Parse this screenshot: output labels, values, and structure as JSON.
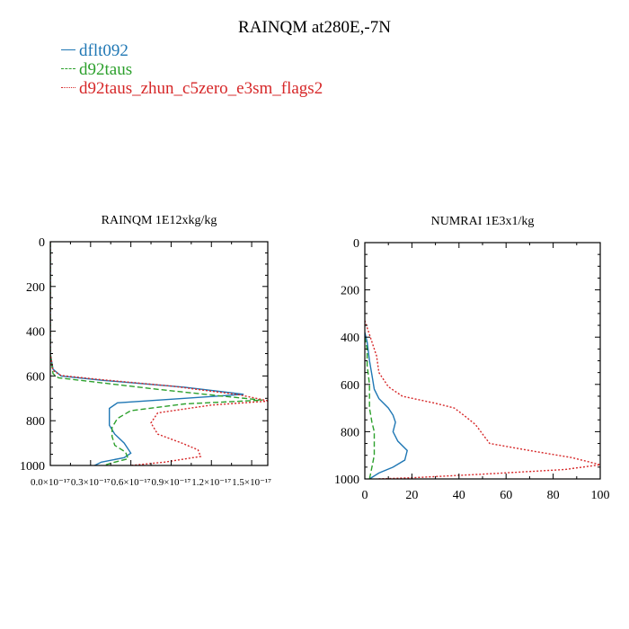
{
  "title": "RAINQM at280E,-7N",
  "legend": [
    {
      "name": "dflt092",
      "color": "#1f77b4",
      "dash": "solid"
    },
    {
      "name": "d92taus",
      "color": "#2ca02c",
      "dash": "dashed"
    },
    {
      "name": "d92taus_zhun_c5zero_e3sm_flags2",
      "color": "#d62728",
      "dash": "dotted"
    }
  ],
  "chart_data": [
    {
      "type": "line",
      "title": "RAINQM  1E12xkg/kg",
      "xlim": [
        0.0,
        1.62
      ],
      "ylim": [
        1000,
        0
      ],
      "x_ticks": [
        0.0,
        0.3,
        0.6,
        0.9,
        1.2,
        1.5
      ],
      "x_tick_labels": [
        "0.0×10⁻¹⁷",
        "0.3×10⁻¹⁷",
        "0.6×10⁻¹⁷",
        "0.9×10⁻¹⁷",
        "1.2×10⁻¹⁷",
        "1.5×10⁻¹⁷"
      ],
      "y_ticks": [
        0,
        200,
        400,
        600,
        800,
        1000
      ],
      "y_tick_labels": [
        "0",
        "200",
        "400",
        "600",
        "800",
        "1000"
      ],
      "series": [
        {
          "name": "dflt092",
          "points": [
            [
              0.0,
              0
            ],
            [
              0.0,
              100
            ],
            [
              0.0,
              200
            ],
            [
              0.0,
              300
            ],
            [
              0.0,
              400
            ],
            [
              0.0,
              500
            ],
            [
              0.02,
              570
            ],
            [
              0.08,
              600
            ],
            [
              0.4,
              620
            ],
            [
              1.0,
              650
            ],
            [
              1.44,
              682
            ],
            [
              1.0,
              700
            ],
            [
              0.5,
              720
            ],
            [
              0.44,
              745
            ],
            [
              0.44,
              780
            ],
            [
              0.44,
              820
            ],
            [
              0.48,
              860
            ],
            [
              0.55,
              900
            ],
            [
              0.6,
              945
            ],
            [
              0.55,
              965
            ],
            [
              0.38,
              985
            ],
            [
              0.33,
              1000
            ]
          ]
        },
        {
          "name": "d92taus",
          "points": [
            [
              0.0,
              0
            ],
            [
              0.0,
              100
            ],
            [
              0.0,
              200
            ],
            [
              0.0,
              300
            ],
            [
              0.0,
              400
            ],
            [
              0.0,
              500
            ],
            [
              0.02,
              590
            ],
            [
              0.06,
              608
            ],
            [
              0.3,
              625
            ],
            [
              0.8,
              660
            ],
            [
              1.28,
              690
            ],
            [
              1.58,
              708
            ],
            [
              1.0,
              725
            ],
            [
              0.6,
              755
            ],
            [
              0.5,
              790
            ],
            [
              0.46,
              830
            ],
            [
              0.46,
              870
            ],
            [
              0.48,
              910
            ],
            [
              0.56,
              940
            ],
            [
              0.58,
              970
            ],
            [
              0.45,
              990
            ],
            [
              0.4,
              1000
            ]
          ]
        },
        {
          "name": "d92taus_zhun_c5zero_e3sm_flags2",
          "points": [
            [
              0.0,
              0
            ],
            [
              0.0,
              100
            ],
            [
              0.0,
              200
            ],
            [
              0.0,
              300
            ],
            [
              0.0,
              400
            ],
            [
              0.0,
              500
            ],
            [
              0.02,
              575
            ],
            [
              0.08,
              598
            ],
            [
              0.35,
              615
            ],
            [
              0.9,
              645
            ],
            [
              1.4,
              683
            ],
            [
              1.63,
              712
            ],
            [
              1.2,
              730
            ],
            [
              0.8,
              765
            ],
            [
              0.75,
              810
            ],
            [
              0.8,
              860
            ],
            [
              0.98,
              900
            ],
            [
              1.1,
              930
            ],
            [
              1.12,
              960
            ],
            [
              0.85,
              985
            ],
            [
              0.6,
              1000
            ]
          ]
        }
      ]
    },
    {
      "type": "line",
      "title": "NUMRAI  1E3x1/kg",
      "xlim": [
        0,
        100
      ],
      "ylim": [
        1000,
        0
      ],
      "x_ticks": [
        0,
        20,
        40,
        60,
        80,
        100
      ],
      "x_tick_labels": [
        "0",
        "20",
        "40",
        "60",
        "80",
        "100"
      ],
      "y_ticks": [
        0,
        200,
        400,
        600,
        800,
        1000
      ],
      "y_tick_labels": [
        "0",
        "200",
        "400",
        "600",
        "800",
        "1000"
      ],
      "series": [
        {
          "name": "dflt092",
          "points": [
            [
              0,
              380
            ],
            [
              1,
              420
            ],
            [
              2,
              500
            ],
            [
              3,
              560
            ],
            [
              4,
              620
            ],
            [
              6,
              660
            ],
            [
              10,
              700
            ],
            [
              12,
              730
            ],
            [
              13,
              760
            ],
            [
              12,
              800
            ],
            [
              14,
              840
            ],
            [
              18,
              880
            ],
            [
              17,
              920
            ],
            [
              12,
              950
            ],
            [
              6,
              975
            ],
            [
              2,
              1000
            ]
          ]
        },
        {
          "name": "d92taus",
          "points": [
            [
              0,
              400
            ],
            [
              1,
              450
            ],
            [
              1,
              520
            ],
            [
              2,
              600
            ],
            [
              2,
              700
            ],
            [
              3,
              760
            ],
            [
              4,
              800
            ],
            [
              4,
              850
            ],
            [
              4,
              900
            ],
            [
              3,
              950
            ],
            [
              2,
              1000
            ]
          ]
        },
        {
          "name": "d92taus_zhun_c5zero_e3sm_flags2",
          "points": [
            [
              0,
              330
            ],
            [
              1,
              360
            ],
            [
              3,
              420
            ],
            [
              5,
              480
            ],
            [
              6,
              550
            ],
            [
              10,
              610
            ],
            [
              16,
              650
            ],
            [
              30,
              680
            ],
            [
              38,
              700
            ],
            [
              42,
              730
            ],
            [
              47,
              770
            ],
            [
              50,
              810
            ],
            [
              53,
              850
            ],
            [
              70,
              880
            ],
            [
              88,
              910
            ],
            [
              100,
              940
            ],
            [
              85,
              960
            ],
            [
              50,
              980
            ],
            [
              20,
              995
            ],
            [
              5,
              1000
            ]
          ]
        }
      ]
    }
  ]
}
